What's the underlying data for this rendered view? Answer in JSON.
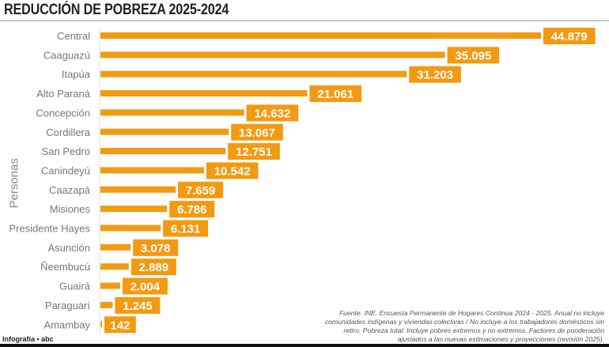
{
  "title": "REDUCCIÓN DE POBREZA 2025-2024",
  "credit": "Infografía • abc",
  "source": "Fuente: INE. Encuesta Permanente de Hogares Continua 2024 - 2025. Anual no incluye comunidades indígenas y viviendas colectivas / No incluye a los trabajadores domésticos sin retiro. Pobreza total: Incluye pobres extremos y no extremos. Factores de ponderación ajustados a las nuevas estimaciones y proyecciones (revisión 2025).",
  "colors": {
    "bar": "#F39A12",
    "label_box": "#F39A12"
  },
  "chart_data": {
    "type": "bar",
    "orientation": "horizontal",
    "title": "REDUCCIÓN DE POBREZA 2025-2024",
    "ylabel": "Personas",
    "xlabel": "",
    "grid": false,
    "categories": [
      "Central",
      "Caaguazú",
      "Itapúa",
      "Alto Paraná",
      "Concepción",
      "Cordillera",
      "San Pedro",
      "Canindeyú",
      "Caazapá",
      "Misiones",
      "Presidente Hayes",
      "Asunción",
      "Ñeembucú",
      "Guairá",
      "Paraguarí",
      "Amambay"
    ],
    "values": [
      44879,
      35095,
      31203,
      21061,
      14632,
      13067,
      12751,
      10542,
      7659,
      6786,
      6131,
      3078,
      2889,
      2004,
      1245,
      142
    ],
    "value_labels": [
      "44.879",
      "35.095",
      "31.203",
      "21.061",
      "14.632",
      "13.067",
      "12.751",
      "10.542",
      "7.659",
      "6.786",
      "6.131",
      "3.078",
      "2.889",
      "2.004",
      "1.245",
      "142"
    ]
  }
}
